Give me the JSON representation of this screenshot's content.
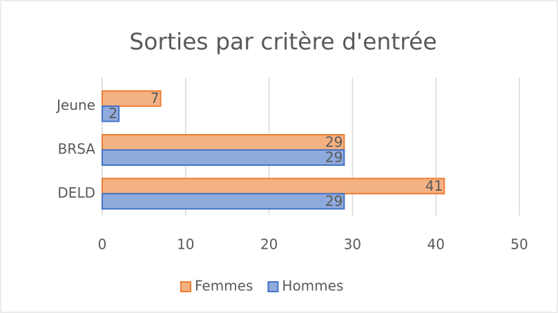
{
  "chart_data": {
    "type": "barh",
    "title": "Sorties par critère d'entrée",
    "categories": [
      "Jeune",
      "BRSA",
      "DELD"
    ],
    "series": [
      {
        "name": "Femmes",
        "color": "#f4b183",
        "values": [
          7,
          29,
          41
        ]
      },
      {
        "name": "Hommes",
        "color": "#8faadc",
        "values": [
          2,
          29,
          29
        ]
      }
    ],
    "xlim": [
      0,
      50
    ],
    "xticks": [
      0,
      10,
      20,
      30,
      40,
      50
    ],
    "grid": true,
    "legend": "bottom"
  }
}
